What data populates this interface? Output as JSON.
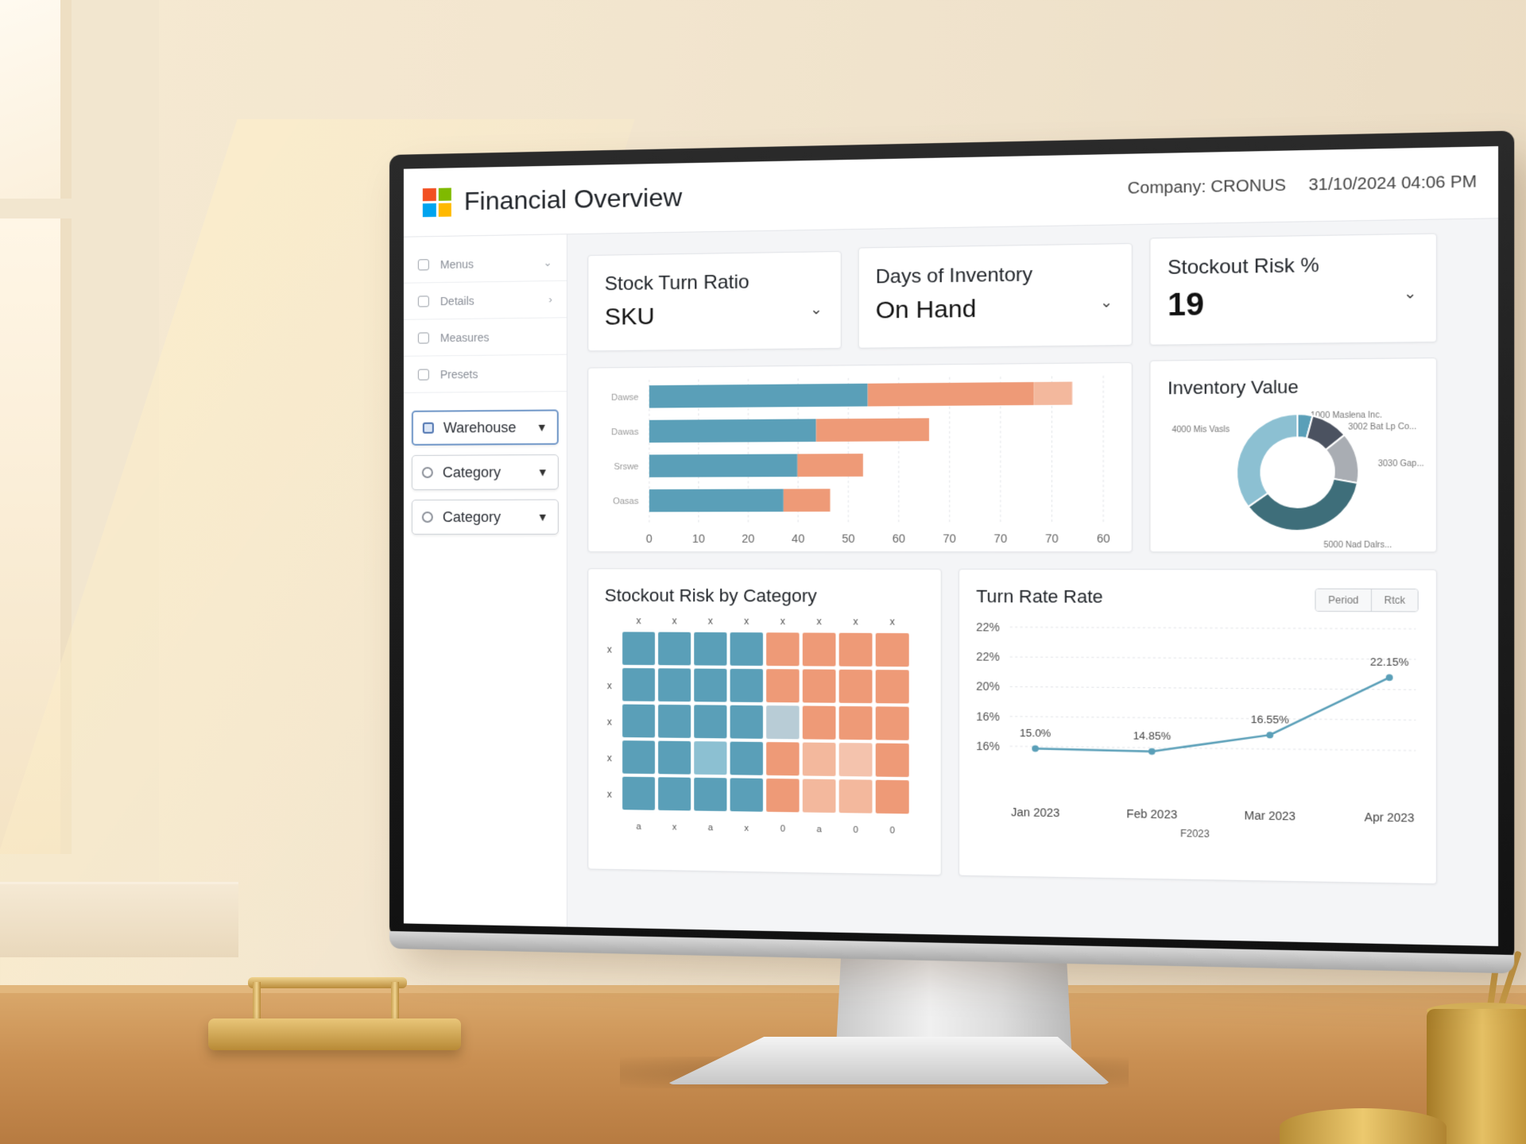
{
  "header": {
    "title": "Financial Overview",
    "company": "Company: CRONUS",
    "datetime": "31/10/2024 04:06 PM"
  },
  "colors": {
    "teal": "#5a9fb8",
    "teal_light": "#8cc0d2",
    "salmon": "#ee9a77",
    "salmon_light": "#f3b89d",
    "dark_teal": "#3e6e7a",
    "slate": "#4b5260",
    "grey": "#a9adb3"
  },
  "sidebar": {
    "nav": [
      {
        "label": "Menus",
        "icon": "home-icon",
        "chevron": "⌄"
      },
      {
        "label": "Details",
        "icon": "list-icon",
        "chevron": "›"
      },
      {
        "label": "Measures",
        "icon": "measure-icon",
        "chevron": ""
      },
      {
        "label": "Presets",
        "icon": "preset-icon",
        "chevron": ""
      }
    ],
    "filters": [
      {
        "label": "Warehouse",
        "icon": "warehouse-icon",
        "active": true
      },
      {
        "label": "Category",
        "icon": "category-icon",
        "active": false
      },
      {
        "label": "Category",
        "icon": "category-icon",
        "active": false
      }
    ]
  },
  "kpis": [
    {
      "label": "Stock Turn Ratio",
      "value": "SKU"
    },
    {
      "label": "Days of Inventory",
      "value": "On Hand"
    },
    {
      "label": "Stockout Risk %",
      "value": "19"
    }
  ],
  "bar_chart": {
    "chart_data": {
      "type": "bar",
      "orientation": "horizontal",
      "stacked": true,
      "categories": [
        "Dawse",
        "Dawas",
        "Srswe",
        "Oasas"
      ],
      "series": [
        {
          "values": [
            47,
            36,
            32,
            29
          ]
        },
        {
          "values": [
            35,
            24,
            14,
            10
          ]
        },
        {
          "values": [
            8,
            0,
            0,
            0
          ]
        }
      ],
      "x_ticks": [
        "0",
        "10",
        "20",
        "40",
        "50",
        "60",
        "70",
        "70",
        "70",
        "60"
      ],
      "grid": true
    }
  },
  "donut": {
    "title": "Inventory Value",
    "chart_data": {
      "type": "pie",
      "hole": true,
      "slices": [
        {
          "label": "1000 Maslena Inc.",
          "value": 4
        },
        {
          "label": "3002 Bat Lp Co...",
          "value": 10
        },
        {
          "label": "3030 Gap...",
          "value": 14
        },
        {
          "label": "5000 Nad Dalrs...",
          "value": 37
        },
        {
          "label": "4000 Mis Vasls",
          "value": 35
        }
      ]
    }
  },
  "heatmap": {
    "title": "Stockout Risk by Category",
    "chart_data": {
      "type": "heatmap",
      "rows": 5,
      "cols": 8,
      "top_labels": [
        "x",
        "x",
        "x",
        "x",
        "x",
        "x",
        "x",
        "x"
      ],
      "left_labels": [
        "x",
        "x",
        "x",
        "x",
        "x"
      ],
      "bottom_labels": [
        "a",
        "x",
        "a",
        "x",
        "0",
        "a",
        "0",
        "0"
      ],
      "cells": [
        [
          1,
          1,
          1,
          1,
          2,
          2,
          2,
          2
        ],
        [
          1,
          1,
          1,
          1,
          2,
          2,
          2,
          2
        ],
        [
          1,
          1,
          1,
          1,
          0,
          2,
          2,
          2
        ],
        [
          1,
          1,
          0.5,
          1,
          2,
          1.5,
          1.2,
          2
        ],
        [
          1,
          1,
          1,
          1,
          2,
          1.5,
          1.5,
          2
        ]
      ]
    }
  },
  "line_chart": {
    "title": "Turn Rate Rate",
    "toggle": [
      "Period",
      "Rtck"
    ],
    "chart_data": {
      "type": "line",
      "x": [
        "Jan 2023",
        "Feb 2023",
        "Mar 2023",
        "Apr 2023"
      ],
      "x_sublabel": "F2023",
      "values": [
        15.0,
        14.85,
        16.55,
        22.15
      ],
      "point_labels": [
        "15.0%",
        "14.85%",
        "16.55%",
        "22.15%"
      ],
      "y_ticks": [
        "22%",
        "22%",
        "20%",
        "16%",
        "16%"
      ],
      "grid": true
    }
  }
}
